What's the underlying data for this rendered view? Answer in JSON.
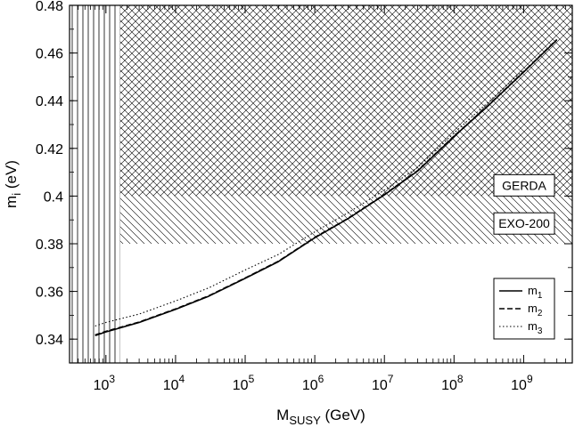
{
  "chart_data": {
    "type": "line",
    "xscale": "log",
    "xlim": [
      300,
      5000000000
    ],
    "ylim": [
      0.33,
      0.48
    ],
    "xlabel": {
      "main": "M",
      "sub": "SUSY",
      "unit": " (GeV)"
    },
    "ylabel": {
      "main": "m",
      "sub": "i",
      "unit": " (eV)"
    },
    "x_ticks": [
      {
        "value": 1000,
        "base": "10",
        "exp": "3"
      },
      {
        "value": 10000,
        "base": "10",
        "exp": "4"
      },
      {
        "value": 100000,
        "base": "10",
        "exp": "5"
      },
      {
        "value": 1000000,
        "base": "10",
        "exp": "6"
      },
      {
        "value": 10000000,
        "base": "10",
        "exp": "7"
      },
      {
        "value": 100000000,
        "base": "10",
        "exp": "8"
      },
      {
        "value": 1000000000,
        "base": "10",
        "exp": "9"
      }
    ],
    "y_ticks": [
      {
        "value": 0.34,
        "label": "0.34"
      },
      {
        "value": 0.36,
        "label": "0.36"
      },
      {
        "value": 0.38,
        "label": "0.38"
      },
      {
        "value": 0.4,
        "label": "0.4"
      },
      {
        "value": 0.42,
        "label": "0.42"
      },
      {
        "value": 0.44,
        "label": "0.44"
      },
      {
        "value": 0.46,
        "label": "0.46"
      },
      {
        "value": 0.48,
        "label": "0.48"
      }
    ],
    "regions": [
      {
        "label": "GERDA",
        "pattern": "crosshatch",
        "ymin": 0.4,
        "ymax": 0.48,
        "xmin": 1600,
        "xmax": 5000000000
      },
      {
        "label": "EXO-200",
        "pattern": "diagonal",
        "ymin": 0.38,
        "ymax": 0.4,
        "xmin": 1600,
        "xmax": 5000000000
      },
      {
        "label": "",
        "pattern": "vertical",
        "ymin": 0.33,
        "ymax": 0.48,
        "xmin": 300,
        "xmax": 1600
      }
    ],
    "series": [
      {
        "name": {
          "main": "m",
          "sub": "1"
        },
        "style": "solid",
        "x": [
          700,
          1000,
          3000,
          10000,
          30000,
          100000,
          300000,
          1000000,
          3000000,
          10000000,
          30000000,
          100000000,
          300000000,
          1000000000,
          3000000000
        ],
        "y": [
          0.3415,
          0.343,
          0.347,
          0.3525,
          0.358,
          0.3655,
          0.3725,
          0.3825,
          0.3905,
          0.4005,
          0.4105,
          0.425,
          0.4375,
          0.452,
          0.4655
        ]
      },
      {
        "name": {
          "main": "m",
          "sub": "2"
        },
        "style": "dashed",
        "x": [
          700,
          1000,
          3000,
          10000,
          30000,
          100000,
          300000,
          1000000,
          3000000,
          10000000,
          30000000,
          100000000,
          300000000,
          1000000000,
          3000000000
        ],
        "y": [
          0.3418,
          0.3433,
          0.3472,
          0.3527,
          0.3582,
          0.3657,
          0.3727,
          0.3827,
          0.3907,
          0.4007,
          0.4107,
          0.4252,
          0.4377,
          0.4522,
          0.4657
        ]
      },
      {
        "name": {
          "main": "m",
          "sub": "3"
        },
        "style": "dotted",
        "x": [
          700,
          1000,
          3000,
          10000,
          30000,
          100000,
          300000,
          1000000,
          3000000,
          10000000,
          30000000,
          100000000,
          300000000,
          1000000000
        ],
        "y": [
          0.3455,
          0.347,
          0.3505,
          0.356,
          0.3615,
          0.369,
          0.3755,
          0.385,
          0.393,
          0.4025,
          0.412,
          0.4265,
          0.439,
          0.453
        ]
      }
    ],
    "legend": {
      "position": "bottom-right"
    }
  }
}
